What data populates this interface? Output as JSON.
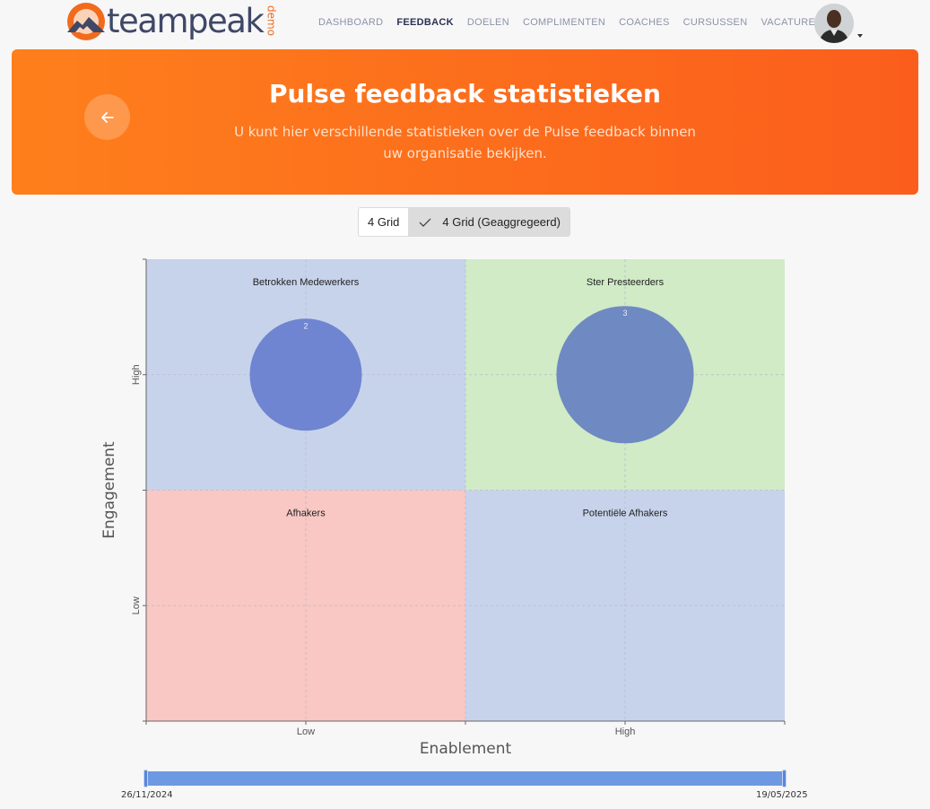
{
  "brand": {
    "name": "teampeak",
    "tag": "demo",
    "accent": "#f26b1d",
    "navy": "#3f4866"
  },
  "nav": {
    "items": [
      "DASHBOARD",
      "FEEDBACK",
      "DOELEN",
      "COMPLIMENTEN",
      "COACHES",
      "CURSUSSEN",
      "VACATURES"
    ],
    "active": "FEEDBACK"
  },
  "banner": {
    "title": "Pulse feedback statistieken",
    "subtitle": "U kunt hier verschillende statistieken over de Pulse feedback binnen uw organisatie bekijken."
  },
  "toggle": {
    "options": [
      "4 Grid",
      "4 Grid (Geaggregeerd)"
    ],
    "selected": "4 Grid (Geaggregeerd)"
  },
  "chart_data": {
    "type": "scatter",
    "xlabel": "Enablement",
    "ylabel": "Engagement",
    "xticks": [
      "Low",
      "High"
    ],
    "yticks": [
      "Low",
      "High"
    ],
    "xlim": [
      0,
      2
    ],
    "ylim": [
      0,
      2
    ],
    "grid": true,
    "quadrants": [
      {
        "label": "Betrokken Medewerkers",
        "x": [
          0,
          1
        ],
        "y": [
          1,
          2
        ],
        "color": "#c7d3eb"
      },
      {
        "label": "Ster Presteerders",
        "x": [
          1,
          2
        ],
        "y": [
          1,
          2
        ],
        "color": "#d0ebc6"
      },
      {
        "label": "Afhakers",
        "x": [
          0,
          1
        ],
        "y": [
          0,
          1
        ],
        "color": "#f9c7c4"
      },
      {
        "label": "Potentiële Afhakers",
        "x": [
          1,
          2
        ],
        "y": [
          0,
          1
        ],
        "color": "#c7d3eb"
      }
    ],
    "points": [
      {
        "x": 0.5,
        "y": 1.5,
        "count": 2,
        "color": "#6f85d1"
      },
      {
        "x": 1.5,
        "y": 1.5,
        "count": 3,
        "color": "#6f89c2"
      }
    ]
  },
  "range": {
    "start": "26/11/2024",
    "end": "19/05/2025"
  }
}
